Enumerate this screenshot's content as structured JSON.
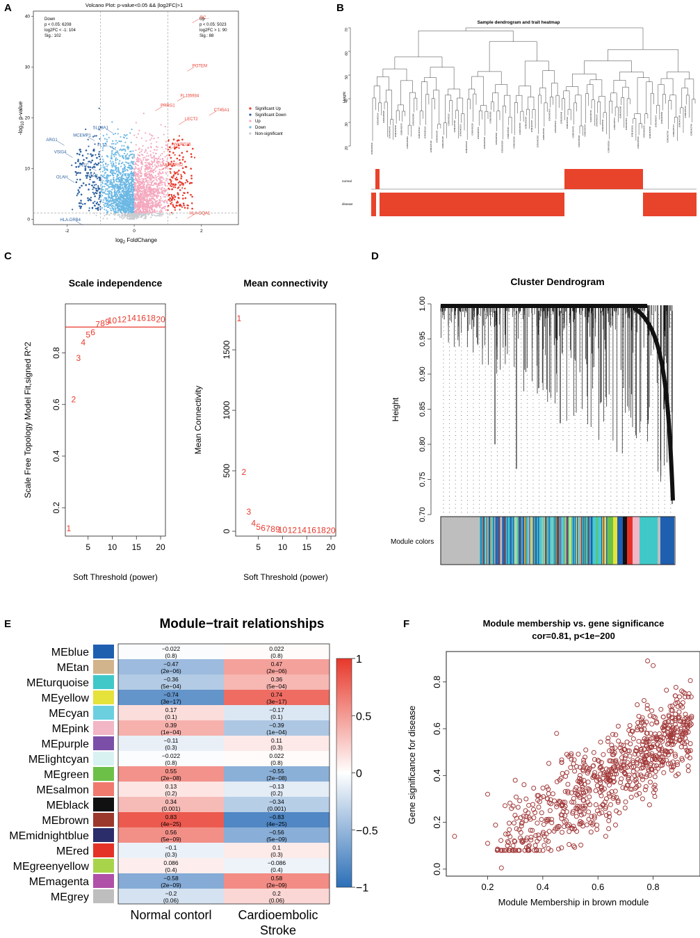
{
  "panel_letters": [
    "A",
    "B",
    "C",
    "D",
    "E",
    "F"
  ],
  "chart_data": [
    {
      "id": "A",
      "type": "scatter",
      "title": "Volcano Plot: p-value<0.05 && |log2FC|>1",
      "xlabel": "log",
      "xlabel_sub": "2",
      "xlabel_tail": " FoldChange",
      "ylabel": "-log",
      "ylabel_sub": "10",
      "ylabel_tail": " p-value",
      "xlim": [
        -3,
        3.1
      ],
      "ylim": [
        -1,
        41
      ],
      "xticks": [
        -2,
        0,
        2
      ],
      "yticks": [
        0,
        10,
        20,
        30,
        40
      ],
      "thresholds": {
        "x": [
          -1,
          1
        ],
        "y": 1.3
      },
      "stats_down": [
        "Down",
        "p < 0.05: 6208",
        "log2FC < -1: 104",
        "Sig.: 102"
      ],
      "stats_up": [
        "Up",
        "p < 0.05: 5023",
        "log2FC > 1: 90",
        "Sig.: 88"
      ],
      "legend": [
        "Significant Up",
        "Significant Down",
        "Up",
        "Down",
        "Non-significant"
      ],
      "colors": {
        "sig_up": "#e8382b",
        "sig_down": "#2c5fa0",
        "up": "#f4a9bf",
        "down": "#6cb8e4",
        "ns": "#c8ccd0"
      },
      "labels_down": [
        {
          "name": "SLC8A1",
          "x": -1.0,
          "y": 17.8
        },
        {
          "name": "MCEMP1",
          "x": -1.55,
          "y": 16.3
        },
        {
          "name": "ARG1",
          "x": -2.45,
          "y": 15.4
        },
        {
          "name": "FLT3...",
          "x": -0.9,
          "y": 14.4
        },
        {
          "name": "VSIG4",
          "x": -2.2,
          "y": 13.0
        },
        {
          "name": "INSC",
          "x": -1.5,
          "y": 10.4
        },
        {
          "name": "FCAR",
          "x": -1.25,
          "y": 8.3
        },
        {
          "name": "OLAH",
          "x": -2.15,
          "y": 8.1
        },
        {
          "name": "HLA-DRB4",
          "x": -1.9,
          "y": -0.3
        }
      ],
      "labels_up": [
        {
          "name": "BC...",
          "x": 2.1,
          "y": 39.5
        },
        {
          "name": "POTEM",
          "x": 1.95,
          "y": 30.0
        },
        {
          "name": "FLJ35934",
          "x": 1.65,
          "y": 24.1
        },
        {
          "name": "PRRG1",
          "x": 1.0,
          "y": 22.2
        },
        {
          "name": "LECT2",
          "x": 1.7,
          "y": 19.5
        },
        {
          "name": "CT45A1",
          "x": 2.6,
          "y": 21.3
        },
        {
          "name": "ANKRD26",
          "x": 1.4,
          "y": 14.5
        },
        {
          "name": "MGABRS2",
          "x": 1.15,
          "y": 10.5
        },
        {
          "name": "HLA-DQA1",
          "x": 1.95,
          "y": 1.0
        }
      ]
    },
    {
      "id": "B",
      "type": "heatmap",
      "title": "Sample dendrogram and trait heatmap",
      "ylabel": "Height",
      "yticks": [
        20,
        30,
        40,
        50,
        60,
        70
      ],
      "traits": [
        "normal",
        "disease"
      ],
      "colors": {
        "on": "#e8432b",
        "off": "#ffffff"
      }
    },
    {
      "id": "C1",
      "type": "scatter",
      "title": "Scale independence",
      "xlabel": "Soft Threshold (power)",
      "ylabel": "Scale Free Topology Model Fit,signed R^2",
      "xlim": [
        0.3,
        21
      ],
      "ylim": [
        0.09,
        0.99
      ],
      "xticks": [
        5,
        10,
        15,
        20
      ],
      "yticks": [
        0.2,
        0.4,
        0.6,
        0.8
      ],
      "hline": 0.9,
      "x": [
        1,
        2,
        3,
        4,
        5,
        6,
        7,
        8,
        9,
        10,
        12,
        14,
        16,
        18,
        20
      ],
      "values": [
        0.12,
        0.62,
        0.78,
        0.84,
        0.87,
        0.88,
        0.91,
        0.915,
        0.92,
        0.925,
        0.93,
        0.935,
        0.935,
        0.935,
        0.93
      ],
      "point_labels": [
        "1",
        "2",
        "3",
        "4",
        "5",
        "6",
        "7",
        "8",
        "9",
        "10",
        "12",
        "14",
        "16",
        "18",
        "20"
      ]
    },
    {
      "id": "C2",
      "type": "scatter",
      "title": "Mean connectivity",
      "xlabel": "Soft Threshold (power)",
      "ylabel": "Mean Connectivity",
      "xlim": [
        0.3,
        21
      ],
      "ylim": [
        -40,
        1880
      ],
      "xticks": [
        5,
        10,
        15,
        20
      ],
      "yticks": [
        0,
        500,
        1000,
        1500
      ],
      "x": [
        1,
        2,
        3,
        4,
        5,
        6,
        7,
        8,
        9,
        10,
        12,
        14,
        16,
        18,
        20
      ],
      "values": [
        1760,
        490,
        160,
        65,
        35,
        25,
        20,
        18,
        15,
        12,
        10,
        9,
        8,
        8,
        7
      ],
      "point_labels": [
        "1",
        "2",
        "3",
        "4",
        "5",
        "6",
        "7",
        "8",
        "9",
        "10",
        "12",
        "14",
        "16",
        "18",
        "20"
      ]
    },
    {
      "id": "D",
      "type": "heatmap",
      "title": "Cluster Dendrogram",
      "ylabel": "Height",
      "yticks": [
        0.7,
        0.75,
        0.8,
        0.85,
        0.9,
        0.95,
        1.0
      ],
      "ylim": [
        0.7,
        1.0
      ],
      "colorbar_label": "Module colors",
      "module_colors": [
        {
          "name": "grey",
          "color": "#bebebe"
        },
        {
          "name": "turquoise",
          "color": "#40c8c8"
        },
        {
          "name": "blue",
          "color": "#1f5fb0"
        },
        {
          "name": "brown",
          "color": "#9b3a2c"
        },
        {
          "name": "yellow",
          "color": "#e6e23c"
        },
        {
          "name": "green",
          "color": "#6cc048"
        },
        {
          "name": "red",
          "color": "#e53228"
        },
        {
          "name": "black",
          "color": "#111111"
        },
        {
          "name": "pink",
          "color": "#f2b6c6"
        },
        {
          "name": "magenta",
          "color": "#b050a8"
        }
      ]
    },
    {
      "id": "E",
      "type": "heatmap",
      "title": "Module−trait relationships",
      "columns": [
        "Normal contorl",
        "Cardioembolic Stroke"
      ],
      "colorbar_ticks": [
        "1",
        "0.5",
        "0",
        "−0.5",
        "−1"
      ],
      "rows": [
        {
          "name": "MEblue",
          "color": "#1f5fb0",
          "r": -0.022,
          "r_text": "−0.022",
          "r2_text": "0.022",
          "p": "(0.8)"
        },
        {
          "name": "MEtan",
          "color": "#d2b48c",
          "r": -0.47,
          "r_text": "−0.47",
          "r2_text": "0.47",
          "p": "(2e−06)"
        },
        {
          "name": "MEturquoise",
          "color": "#40c8c8",
          "r": -0.36,
          "r_text": "−0.36",
          "r2_text": "0.36",
          "p": "(5e−04)"
        },
        {
          "name": "MEyellow",
          "color": "#e6e23c",
          "r": -0.74,
          "r_text": "−0.74",
          "r2_text": "0.74",
          "p": "(3e−17)"
        },
        {
          "name": "MEcyan",
          "color": "#6ccfe0",
          "r": 0.17,
          "r_text": "0.17",
          "r2_text": "−0.17",
          "p": "(0.1)"
        },
        {
          "name": "MEpink",
          "color": "#f2b6c6",
          "r": 0.39,
          "r_text": "0.39",
          "r2_text": "−0.39",
          "p": "(1e−04)"
        },
        {
          "name": "MEpurple",
          "color": "#7b4fa8",
          "r": -0.11,
          "r_text": "−0.11",
          "r2_text": "0.11",
          "p": "(0.3)"
        },
        {
          "name": "MElightcyan",
          "color": "#d8f2f2",
          "r": -0.022,
          "r_text": "−0.022",
          "r2_text": "0.022",
          "p": "(0.8)"
        },
        {
          "name": "MEgreen",
          "color": "#6cc048",
          "r": 0.55,
          "r_text": "0.55",
          "r2_text": "−0.55",
          "p": "(2e−08)"
        },
        {
          "name": "MEsalmon",
          "color": "#f07a6e",
          "r": 0.13,
          "r_text": "0.13",
          "r2_text": "−0.13",
          "p": "(0.2)"
        },
        {
          "name": "MEblack",
          "color": "#111111",
          "r": 0.34,
          "r_text": "0.34",
          "r2_text": "−0.34",
          "p": "(0.001)"
        },
        {
          "name": "MEbrown",
          "color": "#9b3a2c",
          "r": 0.83,
          "r_text": "0.83",
          "r2_text": "−0.83",
          "p": "(4e−25)"
        },
        {
          "name": "MEmidnightblue",
          "color": "#2a2d6a",
          "r": 0.56,
          "r_text": "0.56",
          "r2_text": "−0.56",
          "p": "(5e−09)"
        },
        {
          "name": "MEred",
          "color": "#e53228",
          "r": -0.1,
          "r_text": "−0.1",
          "r2_text": "0.1",
          "p": "(0.3)"
        },
        {
          "name": "MEgreenyellow",
          "color": "#a8d44c",
          "r": 0.086,
          "r_text": "0.086",
          "r2_text": "−0.086",
          "p": "(0.4)"
        },
        {
          "name": "MEmagenta",
          "color": "#b050a8",
          "r": -0.58,
          "r_text": "−0.58",
          "r2_text": "0.58",
          "p": "(2e−09)"
        },
        {
          "name": "MEgrey",
          "color": "#bebebe",
          "r": -0.2,
          "r_text": "−0.2",
          "r2_text": "0.2",
          "p": "(0.06)"
        }
      ]
    },
    {
      "id": "F",
      "type": "scatter",
      "title": "Module membership vs. gene significance",
      "subtitle": "cor=0.81, p<1e−200",
      "xlabel": "Module Membership in brown module",
      "ylabel": "Gene significance for disease",
      "xlim": [
        0.05,
        0.97
      ],
      "ylim": [
        -0.03,
        0.93
      ],
      "xticks": [
        0.2,
        0.4,
        0.6,
        0.8
      ],
      "yticks": [
        0.0,
        0.2,
        0.4,
        0.6,
        0.8
      ],
      "color": "#a23a3a",
      "cor": 0.81,
      "points": [
        [
          0.08,
          0.14
        ],
        [
          0.2,
          0.11
        ],
        [
          0.25,
          0.005
        ],
        [
          0.2,
          0.32
        ],
        [
          0.3,
          0.38
        ],
        [
          0.45,
          0.58
        ],
        [
          0.78,
          0.89
        ],
        [
          0.8,
          0.87
        ],
        [
          0.93,
          0.75
        ],
        [
          0.9,
          0.7
        ]
      ]
    }
  ]
}
